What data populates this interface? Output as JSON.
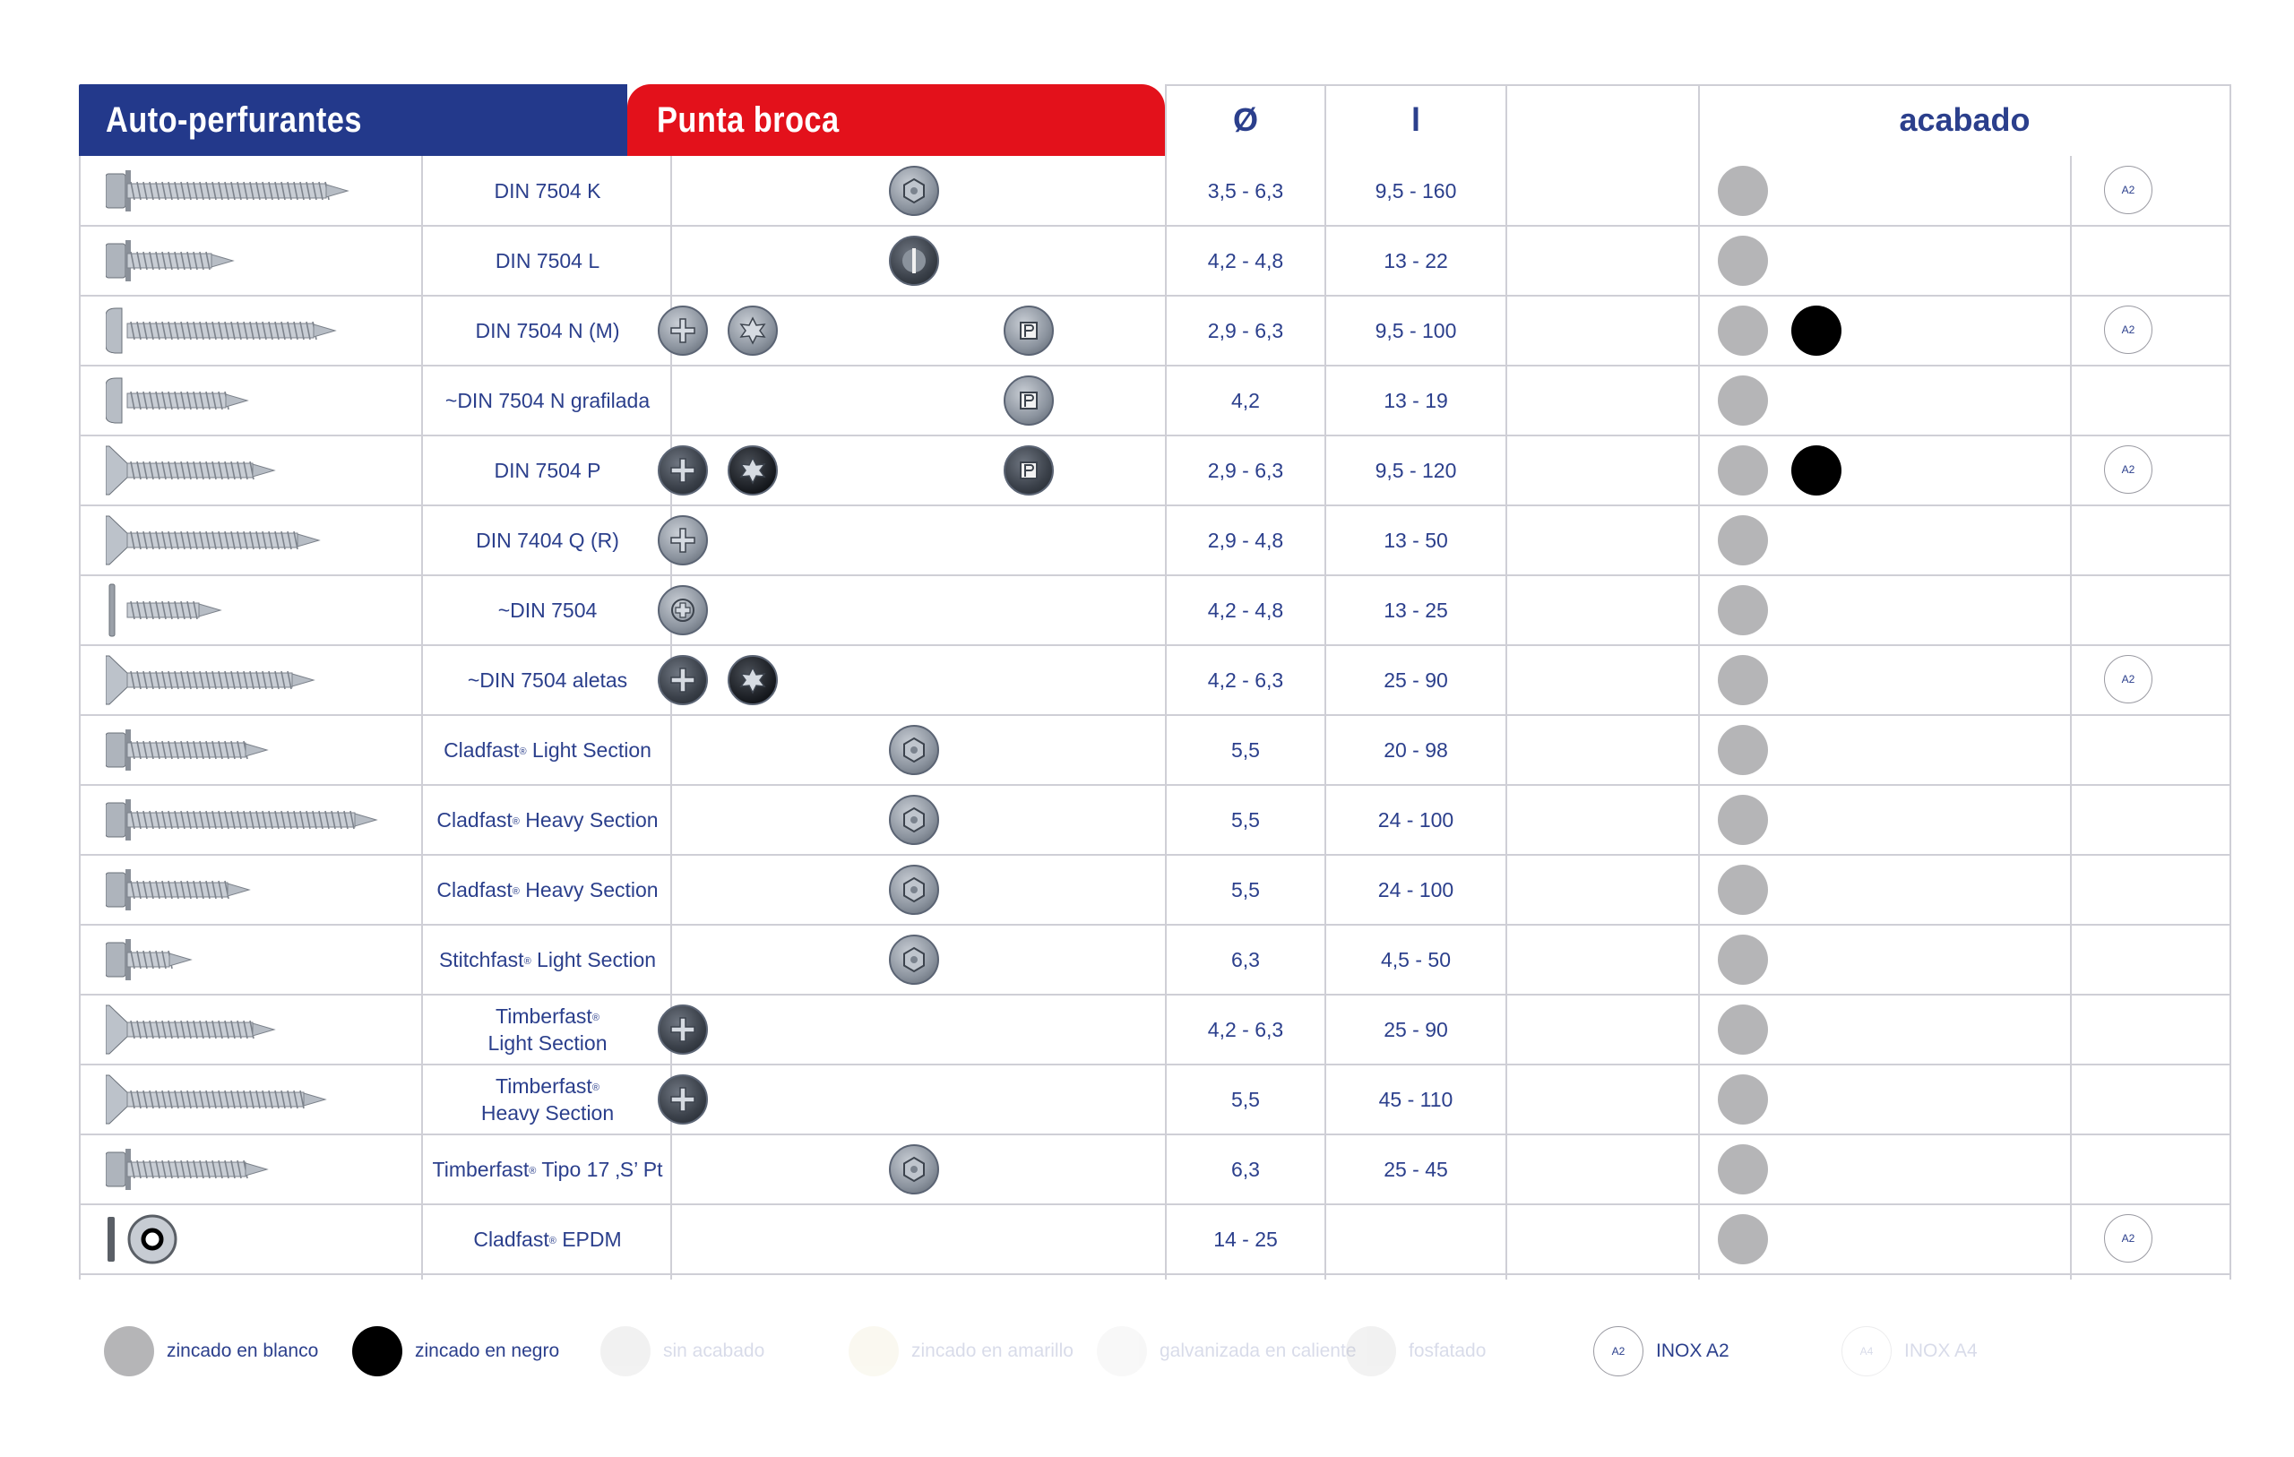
{
  "header": {
    "title_blue": "Auto-perfurantes",
    "title_red": "Punta broca",
    "col_diameter": "Ø",
    "col_length": "l",
    "col_finish": "acabado"
  },
  "rows": [
    {
      "name": "DIN 7504 K",
      "diam": "3,5 - 6,3",
      "len": "9,5 - 160"
    },
    {
      "name": "DIN 7504 L",
      "diam": "4,2 - 4,8",
      "len": "13 - 22"
    },
    {
      "name": "DIN 7504 N (M)",
      "diam": "2,9 - 6,3",
      "len": "9,5 - 100"
    },
    {
      "name": "~DIN 7504 N grafilada",
      "diam": "4,2",
      "len": "13 - 19"
    },
    {
      "name": "DIN 7504 P",
      "diam": "2,9 - 6,3",
      "len": "9,5 - 120"
    },
    {
      "name": "DIN 7404 Q (R)",
      "diam": "2,9 - 4,8",
      "len": "13 - 50"
    },
    {
      "name": "~DIN 7504",
      "diam": "4,2 - 4,8",
      "len": "13 - 25"
    },
    {
      "name": "~DIN 7504 aletas",
      "diam": "4,2 - 6,3",
      "len": "25 - 90"
    },
    {
      "name_pre": "Cladfast",
      "name_post": " Light Section",
      "diam": "5,5",
      "len": "20 - 98"
    },
    {
      "name_pre": "Cladfast",
      "name_post": " Heavy Section",
      "diam": "5,5",
      "len": "24 - 100"
    },
    {
      "name_pre": "Cladfast",
      "name_post": " Heavy Section",
      "diam": "5,5",
      "len": "24 - 100"
    },
    {
      "name_pre": "Stitchfast",
      "name_post": " Light Section",
      "diam": "6,3",
      "len": "4,5 - 50"
    },
    {
      "name_pre": "Timberfast",
      "name_line2": "Light Section",
      "diam": "4,2 - 6,3",
      "len": "25 - 90"
    },
    {
      "name_pre": "Timberfast",
      "name_line2": "Heavy Section",
      "diam": "5,5",
      "len": "45 - 110"
    },
    {
      "name_pre": "Timberfast",
      "name_post": " Tipo 17 ‚S’ Pt",
      "diam": "6,3",
      "len": "25 - 45"
    },
    {
      "name_pre": "Cladfast",
      "name_post": " EPDM",
      "diam": "14 - 25",
      "len": ""
    }
  ],
  "registered_mark": "®",
  "badge_a2": "A2",
  "badge_a4": "A4",
  "legend": {
    "zinc_white": "zincado en blanco",
    "zinc_black": "zincado en negro",
    "no_finish": "sin acabado",
    "zinc_yellow": "zincado en amarillo",
    "hot_galv": "galvanizada en caliente",
    "phosphate": "fosfatado",
    "inox_a2": "INOX A2",
    "inox_a4": "INOX A4"
  },
  "colors": {
    "blue": "#23398b",
    "red": "#e3111b",
    "text": "#2b3f8c",
    "finish_white": "#b5b5b7",
    "finish_black": "#000000"
  }
}
